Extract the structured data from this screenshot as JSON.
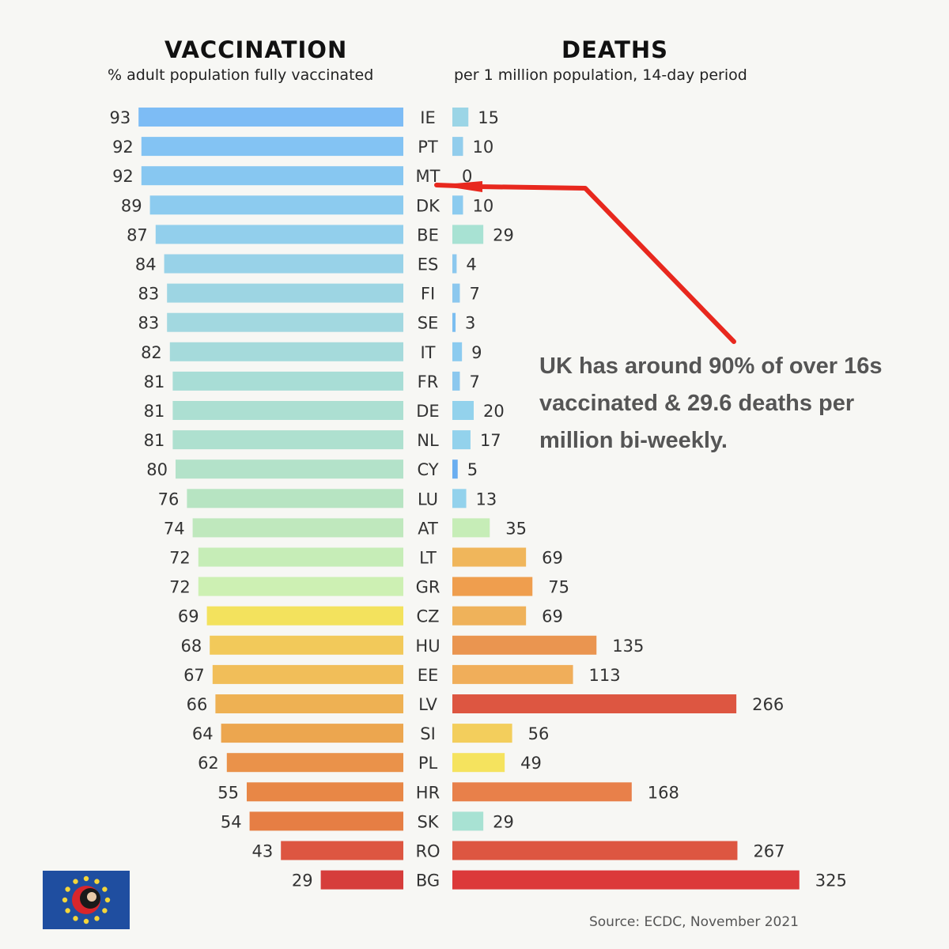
{
  "header": {
    "vaccination_title": "VACCINATION",
    "vaccination_subtitle": "% adult population fully vaccinated",
    "deaths_title": "DEATHS",
    "deaths_subtitle": "per 1 million population, 14-day period"
  },
  "annotation": {
    "line1": "UK has around 90% of over 16s",
    "line2": "vaccinated &  29.6 deaths per",
    "line3": "million bi-weekly."
  },
  "source": "Source: ECDC, November 2021",
  "logo_icon": "eu-flag-icon",
  "colors": {
    "annotation_arrow": "#e8281e",
    "annotation_text": "#555555"
  },
  "chart_data": [
    {
      "type": "bar",
      "title": "VACCINATION",
      "subtitle": "% adult population fully vaccinated",
      "orientation": "horizontal",
      "direction": "right-to-left",
      "categories": [
        "IE",
        "PT",
        "MT",
        "DK",
        "BE",
        "ES",
        "FI",
        "SE",
        "IT",
        "FR",
        "DE",
        "NL",
        "CY",
        "LU",
        "AT",
        "LT",
        "GR",
        "CZ",
        "HU",
        "EE",
        "LV",
        "SI",
        "PL",
        "HR",
        "SK",
        "RO",
        "BG"
      ],
      "values": [
        93,
        92,
        92,
        89,
        87,
        84,
        83,
        83,
        82,
        81,
        81,
        81,
        80,
        76,
        74,
        72,
        72,
        69,
        68,
        67,
        66,
        64,
        62,
        55,
        54,
        43,
        29
      ],
      "colors": [
        "#7dbcf5",
        "#83c3f3",
        "#87c7f1",
        "#8ccbef",
        "#92cfec",
        "#98d2e8",
        "#9dd5e3",
        "#a2d8e0",
        "#a5dadb",
        "#a8ddd6",
        "#acdfd2",
        "#aee0cf",
        "#b3e2c9",
        "#b7e4c2",
        "#bfe8bd",
        "#c6edb7",
        "#cdf0b3",
        "#f3e25d",
        "#f2c95a",
        "#f1be59",
        "#eeb153",
        "#eca64f",
        "#ea924a",
        "#e88746",
        "#e67e44",
        "#dd5641",
        "#d63d3b"
      ],
      "grid": false,
      "legend": "none"
    },
    {
      "type": "bar",
      "title": "DEATHS",
      "subtitle": "per 1 million population, 14-day period",
      "orientation": "horizontal",
      "direction": "left-to-right",
      "categories": [
        "IE",
        "PT",
        "MT",
        "DK",
        "BE",
        "ES",
        "FI",
        "SE",
        "IT",
        "FR",
        "DE",
        "NL",
        "CY",
        "LU",
        "AT",
        "LT",
        "GR",
        "CZ",
        "HU",
        "EE",
        "LV",
        "SI",
        "PL",
        "HR",
        "SK",
        "RO",
        "BG"
      ],
      "values": [
        15,
        10,
        0,
        10,
        29,
        4,
        7,
        3,
        9,
        7,
        20,
        17,
        5,
        13,
        35,
        69,
        75,
        69,
        135,
        113,
        266,
        56,
        49,
        168,
        29,
        267,
        325
      ],
      "colors": [
        "#9bd5e6",
        "#92cdec",
        "#8cc8ee",
        "#8ccbef",
        "#a8e2d3",
        "#8cc8ee",
        "#8cc8ee",
        "#7cbef0",
        "#8ccbef",
        "#8cc8ee",
        "#93d2ec",
        "#93d2ec",
        "#6aaef0",
        "#93d2ec",
        "#c6edb7",
        "#f0b65b",
        "#ef9e4e",
        "#efb25a",
        "#ea9550",
        "#f0ae5a",
        "#dd5641",
        "#f3ce5c",
        "#f5e35e",
        "#e8804a",
        "#a8e2d3",
        "#dd5641",
        "#dc393a"
      ],
      "grid": false,
      "legend": "none"
    }
  ]
}
